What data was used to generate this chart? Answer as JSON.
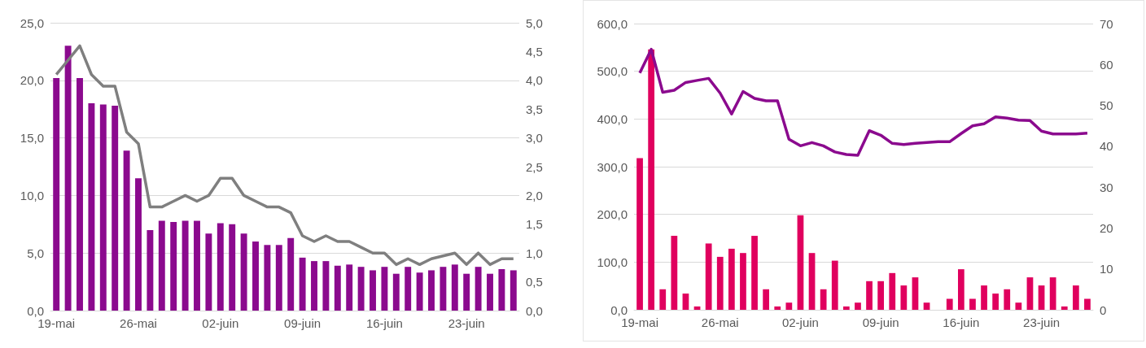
{
  "chart_data": [
    {
      "type": "bar",
      "categories": [
        "19-mai",
        null,
        null,
        null,
        null,
        null,
        null,
        "26-mai",
        null,
        null,
        null,
        null,
        null,
        null,
        "02-juin",
        null,
        null,
        null,
        null,
        null,
        null,
        "09-juin",
        null,
        null,
        null,
        null,
        null,
        null,
        "16-juin",
        null,
        null,
        null,
        null,
        null,
        null,
        "23-juin",
        null,
        null,
        null,
        null
      ],
      "series": [
        {
          "color": "#8b0a8e",
          "values": [
            20.2,
            23.0,
            20.2,
            18.0,
            17.9,
            17.8,
            13.9,
            11.5,
            7.0,
            7.8,
            7.7,
            7.8,
            7.8,
            6.7,
            7.6,
            7.5,
            6.7,
            6.0,
            5.7,
            5.7,
            6.3,
            4.6,
            4.3,
            4.3,
            3.9,
            4.0,
            3.8,
            3.5,
            3.8,
            3.2,
            3.8,
            3.3,
            3.5,
            3.8,
            4.0,
            3.2,
            3.8,
            3.2,
            3.6,
            3.5
          ]
        },
        {
          "type": "line",
          "axis": "y2",
          "color": "#7f7f7f",
          "values": [
            4.1,
            4.35,
            4.6,
            4.1,
            3.9,
            3.9,
            3.1,
            2.9,
            1.8,
            1.8,
            1.9,
            2.0,
            1.9,
            2.0,
            2.3,
            2.3,
            2.0,
            1.9,
            1.8,
            1.8,
            1.7,
            1.3,
            1.2,
            1.3,
            1.2,
            1.2,
            1.1,
            1.0,
            1.0,
            0.8,
            0.9,
            0.8,
            0.9,
            0.95,
            1.0,
            0.8,
            1.0,
            0.8,
            0.9,
            0.9
          ]
        }
      ],
      "ylim": [
        0,
        25
      ],
      "yticks": [
        {
          "value": 0,
          "label": "0,0"
        },
        {
          "value": 5,
          "label": "5,0"
        },
        {
          "value": 10,
          "label": "10,0"
        },
        {
          "value": 15,
          "label": "15,0"
        },
        {
          "value": 20,
          "label": "20,0"
        },
        {
          "value": 25,
          "label": "25,0"
        }
      ],
      "y2lim": [
        0,
        5
      ],
      "y2ticks": [
        {
          "value": 0,
          "label": "0,0"
        },
        {
          "value": 0.5,
          "label": "0,5"
        },
        {
          "value": 1,
          "label": "1,0"
        },
        {
          "value": 1.5,
          "label": "1,5"
        },
        {
          "value": 2,
          "label": "2,0"
        },
        {
          "value": 2.5,
          "label": "2,5"
        },
        {
          "value": 3,
          "label": "3,0"
        },
        {
          "value": 3.5,
          "label": "3,5"
        },
        {
          "value": 4,
          "label": "4,0"
        },
        {
          "value": 4.5,
          "label": "4,5"
        },
        {
          "value": 5,
          "label": "5,0"
        }
      ],
      "grid": "y",
      "marker": "none"
    },
    {
      "type": "bar",
      "categories": [
        "19-mai",
        null,
        null,
        null,
        null,
        null,
        null,
        "26-mai",
        null,
        null,
        null,
        null,
        null,
        null,
        "02-juin",
        null,
        null,
        null,
        null,
        null,
        null,
        "09-juin",
        null,
        null,
        null,
        null,
        null,
        null,
        "16-juin",
        null,
        null,
        null,
        null,
        null,
        null,
        "23-juin",
        null,
        null,
        null,
        null
      ],
      "series": [
        {
          "color": "#e0005e",
          "values": [
            318,
            546,
            43,
            155,
            34,
            7,
            139,
            111,
            128,
            119,
            155,
            43,
            7,
            15,
            198,
            119,
            43,
            103,
            7,
            15,
            60,
            60,
            77,
            51,
            68,
            15,
            null,
            23,
            85,
            23,
            51,
            34,
            43,
            15,
            68,
            51,
            68,
            7,
            51,
            23
          ]
        },
        {
          "type": "line",
          "axis": "y2",
          "color": "#8b0a8e",
          "values": [
            57.9,
            63.7,
            53.2,
            53.7,
            55.6,
            56.1,
            56.6,
            53.0,
            47.9,
            53.4,
            51.7,
            51.1,
            51.1,
            41.7,
            40.1,
            40.9,
            40.1,
            38.6,
            38.0,
            37.8,
            43.8,
            42.7,
            40.7,
            40.4,
            40.7,
            40.9,
            41.1,
            41.1,
            43.1,
            45.0,
            45.5,
            47.2,
            46.9,
            46.4,
            46.3,
            43.7,
            43.0,
            43.0,
            43.0,
            43.2
          ]
        }
      ],
      "ylim": [
        0,
        600
      ],
      "yticks": [
        {
          "value": 0,
          "label": "0,0"
        },
        {
          "value": 100,
          "label": "100,0"
        },
        {
          "value": 200,
          "label": "200,0"
        },
        {
          "value": 300,
          "label": "300,0"
        },
        {
          "value": 400,
          "label": "400,0"
        },
        {
          "value": 500,
          "label": "500,0"
        },
        {
          "value": 600,
          "label": "600,0"
        }
      ],
      "y2lim": [
        0,
        70
      ],
      "y2ticks": [
        0,
        10,
        20,
        30,
        40,
        50,
        60,
        70
      ],
      "grid": "y",
      "marker": "none"
    }
  ]
}
